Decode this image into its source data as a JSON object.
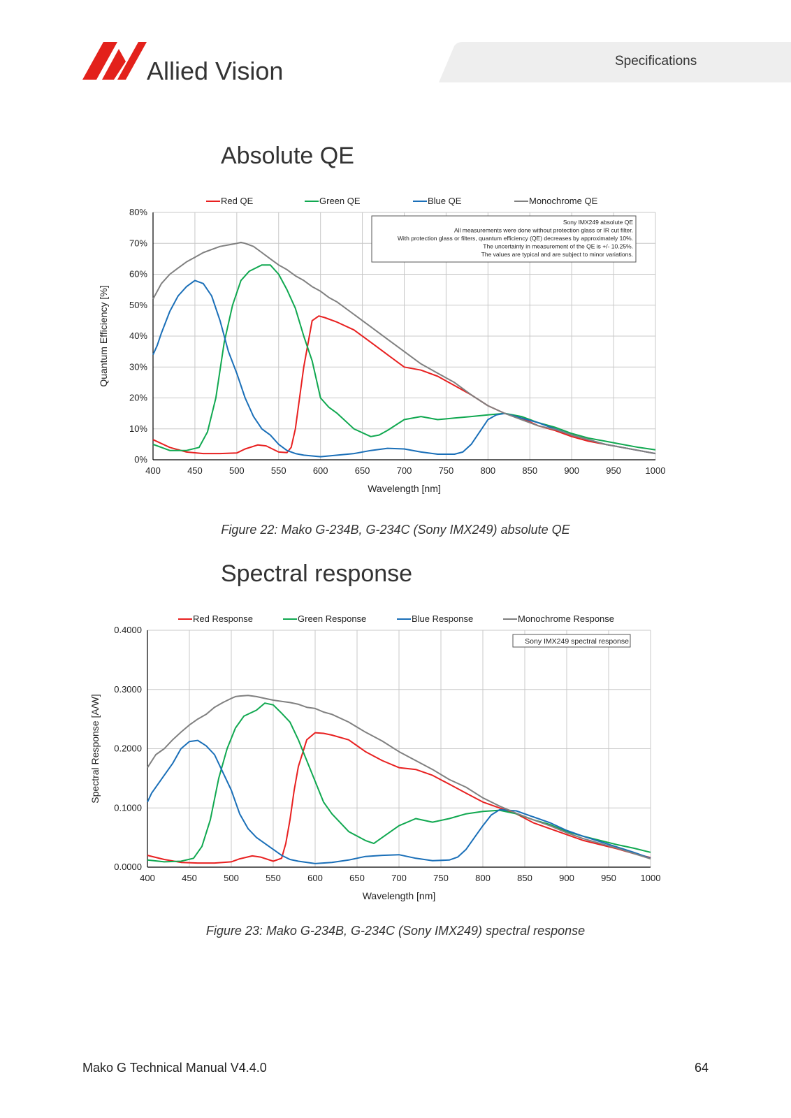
{
  "header": {
    "brand": "Allied Vision",
    "section": "Specifications",
    "colors": {
      "logo_red": "#e3211b",
      "tab_gray": "#eeeeee"
    }
  },
  "sections": [
    {
      "title": "Absolute QE",
      "caption": "Figure 22: Mako G-234B, G-234C (Sony IMX249) absolute QE"
    },
    {
      "title": "Spectral response",
      "caption": "Figure 23: Mako G-234B, G-234C (Sony IMX249) spectral response"
    }
  ],
  "footer": {
    "left": "Mako G Technical Manual V4.4.0",
    "page": "64"
  },
  "chart_data": [
    {
      "type": "line",
      "xlabel": "Wavelength [nm]",
      "ylabel": "Quantum Efficiency [%]",
      "xlim": [
        400,
        1000
      ],
      "ylim": [
        0,
        80
      ],
      "xticks": [
        "400",
        "450",
        "500",
        "550",
        "600",
        "650",
        "700",
        "750",
        "800",
        "850",
        "900",
        "950",
        "1000"
      ],
      "yticks": [
        "0%",
        "10%",
        "20%",
        "30%",
        "40%",
        "50%",
        "60%",
        "70%",
        "80%"
      ],
      "grid": true,
      "legend_position": "top",
      "annotation": [
        "Sony IMX249 absolute QE",
        "All measurements were done without protection glass or IR cut filter.",
        "With protection glass or filters, quantum efficiency (QE) decreases by approximately 10%.",
        "The uncertainty in measurement of the QE is +/- 10.25%.",
        "The values are typical and are subject to minor variations."
      ],
      "series": [
        {
          "name": "Red QE",
          "color": "#e82020",
          "x": [
            400,
            420,
            440,
            460,
            480,
            500,
            510,
            525,
            535,
            550,
            560,
            565,
            570,
            575,
            580,
            590,
            598,
            605,
            620,
            640,
            660,
            680,
            700,
            720,
            740,
            760,
            780,
            800,
            820,
            840,
            860,
            880,
            900,
            920,
            940,
            960,
            980,
            1000
          ],
          "y": [
            6.5,
            4,
            2.5,
            2,
            2,
            2.2,
            3.5,
            4.8,
            4.5,
            2.5,
            2.3,
            4,
            10,
            20,
            30,
            45,
            46.5,
            46,
            44.5,
            42,
            38,
            34,
            30,
            29,
            27,
            24,
            21,
            17.5,
            15,
            13.5,
            11,
            9.5,
            7.5,
            6,
            5,
            4,
            3,
            2
          ]
        },
        {
          "name": "Green QE",
          "color": "#10a850",
          "x": [
            400,
            420,
            440,
            455,
            465,
            475,
            485,
            495,
            505,
            515,
            530,
            540,
            550,
            560,
            570,
            580,
            590,
            600,
            610,
            620,
            640,
            660,
            670,
            680,
            700,
            720,
            740,
            760,
            780,
            800,
            820,
            840,
            860,
            880,
            900,
            920,
            940,
            960,
            980,
            1000
          ],
          "y": [
            5,
            3,
            3,
            4,
            9,
            20,
            38,
            50,
            58,
            61,
            63,
            63,
            60,
            55,
            49,
            40,
            32,
            20,
            17,
            15,
            10,
            7.5,
            8,
            9.5,
            13,
            14,
            13,
            13.5,
            14,
            14.5,
            15,
            14,
            12,
            10.5,
            8.5,
            7,
            6,
            5,
            4,
            3.2
          ]
        },
        {
          "name": "Blue QE",
          "color": "#1a6fb8",
          "x": [
            400,
            405,
            410,
            420,
            430,
            440,
            450,
            460,
            470,
            480,
            490,
            500,
            510,
            520,
            530,
            540,
            550,
            560,
            570,
            580,
            600,
            620,
            640,
            660,
            680,
            700,
            720,
            740,
            760,
            770,
            780,
            790,
            800,
            810,
            820,
            840,
            860,
            880,
            900,
            920,
            940,
            960,
            980,
            1000
          ],
          "y": [
            34,
            37,
            41,
            48,
            53,
            56,
            58,
            57,
            53,
            45,
            35,
            28,
            20,
            14,
            10,
            8,
            5,
            3,
            2,
            1.5,
            1,
            1.5,
            2,
            3,
            3.7,
            3.5,
            2.5,
            1.8,
            1.8,
            2.5,
            5,
            9,
            13,
            14.5,
            15,
            13.5,
            12,
            10,
            8,
            6.5,
            5,
            4,
            3,
            2
          ]
        },
        {
          "name": "Monochrome QE",
          "color": "#808080",
          "x": [
            400,
            410,
            420,
            430,
            440,
            450,
            460,
            470,
            480,
            490,
            500,
            505,
            510,
            520,
            530,
            540,
            550,
            560,
            570,
            580,
            590,
            600,
            610,
            620,
            640,
            660,
            680,
            700,
            720,
            740,
            760,
            780,
            800,
            820,
            840,
            860,
            880,
            900,
            920,
            940,
            960,
            980,
            1000
          ],
          "y": [
            52,
            57,
            60,
            62,
            64,
            65.5,
            67,
            68,
            69,
            69.5,
            70,
            70.3,
            70,
            69,
            67,
            65,
            63,
            61.5,
            59.5,
            58,
            56,
            54.5,
            52.5,
            51,
            47,
            43,
            39,
            35,
            31,
            28,
            25,
            21,
            17.5,
            15,
            13,
            11,
            9.8,
            8,
            6.5,
            5,
            4,
            3,
            2
          ]
        }
      ]
    },
    {
      "type": "line",
      "xlabel": "Wavelength [nm]",
      "ylabel": "Spectral Response [A/W]",
      "xlim": [
        400,
        1000
      ],
      "ylim": [
        0,
        0.4
      ],
      "xticks": [
        "400",
        "450",
        "500",
        "550",
        "600",
        "650",
        "700",
        "750",
        "800",
        "850",
        "900",
        "950",
        "1000"
      ],
      "yticks": [
        "0.0000",
        "0.1000",
        "0.2000",
        "0.3000",
        "0.4000"
      ],
      "grid": true,
      "legend_position": "top",
      "annotation": [
        "Sony IMX249 spectral response"
      ],
      "series": [
        {
          "name": "Red Response",
          "color": "#e82020",
          "x": [
            400,
            420,
            440,
            460,
            480,
            500,
            510,
            525,
            535,
            550,
            560,
            565,
            570,
            575,
            580,
            590,
            600,
            610,
            620,
            640,
            660,
            680,
            700,
            720,
            740,
            760,
            780,
            800,
            820,
            840,
            860,
            880,
            900,
            920,
            940,
            960,
            980,
            1000
          ],
          "y": [
            0.02,
            0.013,
            0.008,
            0.007,
            0.007,
            0.009,
            0.014,
            0.019,
            0.017,
            0.01,
            0.015,
            0.04,
            0.08,
            0.13,
            0.17,
            0.215,
            0.227,
            0.226,
            0.223,
            0.215,
            0.195,
            0.18,
            0.168,
            0.165,
            0.155,
            0.14,
            0.125,
            0.11,
            0.1,
            0.09,
            0.075,
            0.065,
            0.055,
            0.045,
            0.038,
            0.031,
            0.023,
            0.016
          ]
        },
        {
          "name": "Green Response",
          "color": "#10a850",
          "x": [
            400,
            420,
            440,
            455,
            465,
            475,
            485,
            495,
            505,
            515,
            530,
            540,
            550,
            560,
            570,
            580,
            590,
            600,
            610,
            620,
            640,
            660,
            670,
            680,
            700,
            720,
            740,
            760,
            780,
            800,
            820,
            840,
            860,
            880,
            900,
            920,
            940,
            960,
            980,
            1000
          ],
          "y": [
            0.012,
            0.009,
            0.01,
            0.015,
            0.035,
            0.08,
            0.15,
            0.2,
            0.235,
            0.255,
            0.265,
            0.277,
            0.274,
            0.26,
            0.245,
            0.215,
            0.18,
            0.145,
            0.11,
            0.09,
            0.06,
            0.045,
            0.04,
            0.05,
            0.07,
            0.082,
            0.076,
            0.082,
            0.09,
            0.094,
            0.096,
            0.09,
            0.08,
            0.072,
            0.06,
            0.052,
            0.045,
            0.038,
            0.032,
            0.025
          ]
        },
        {
          "name": "Blue Response",
          "color": "#1a6fb8",
          "x": [
            400,
            405,
            410,
            420,
            430,
            440,
            450,
            460,
            470,
            480,
            490,
            500,
            510,
            520,
            530,
            540,
            550,
            560,
            570,
            580,
            600,
            620,
            640,
            660,
            680,
            700,
            720,
            740,
            760,
            770,
            780,
            790,
            800,
            810,
            820,
            840,
            860,
            880,
            900,
            920,
            940,
            960,
            980,
            1000
          ],
          "y": [
            0.11,
            0.125,
            0.135,
            0.155,
            0.175,
            0.2,
            0.212,
            0.214,
            0.205,
            0.19,
            0.16,
            0.13,
            0.09,
            0.065,
            0.05,
            0.04,
            0.03,
            0.02,
            0.013,
            0.01,
            0.006,
            0.008,
            0.012,
            0.018,
            0.02,
            0.021,
            0.015,
            0.011,
            0.012,
            0.017,
            0.03,
            0.05,
            0.07,
            0.088,
            0.097,
            0.095,
            0.085,
            0.075,
            0.062,
            0.052,
            0.043,
            0.034,
            0.025,
            0.015
          ]
        },
        {
          "name": "Monochrome Response",
          "color": "#808080",
          "x": [
            400,
            410,
            420,
            430,
            440,
            450,
            460,
            470,
            480,
            490,
            500,
            505,
            510,
            520,
            530,
            540,
            550,
            560,
            570,
            580,
            590,
            600,
            610,
            620,
            640,
            660,
            680,
            700,
            720,
            740,
            760,
            780,
            800,
            820,
            840,
            860,
            880,
            900,
            920,
            940,
            960,
            980,
            1000
          ],
          "y": [
            0.168,
            0.19,
            0.2,
            0.215,
            0.228,
            0.24,
            0.25,
            0.258,
            0.27,
            0.278,
            0.285,
            0.288,
            0.289,
            0.29,
            0.288,
            0.285,
            0.282,
            0.28,
            0.278,
            0.275,
            0.27,
            0.268,
            0.262,
            0.258,
            0.245,
            0.228,
            0.213,
            0.195,
            0.18,
            0.165,
            0.148,
            0.135,
            0.117,
            0.103,
            0.091,
            0.08,
            0.07,
            0.058,
            0.048,
            0.04,
            0.032,
            0.023,
            0.014
          ]
        }
      ]
    }
  ]
}
